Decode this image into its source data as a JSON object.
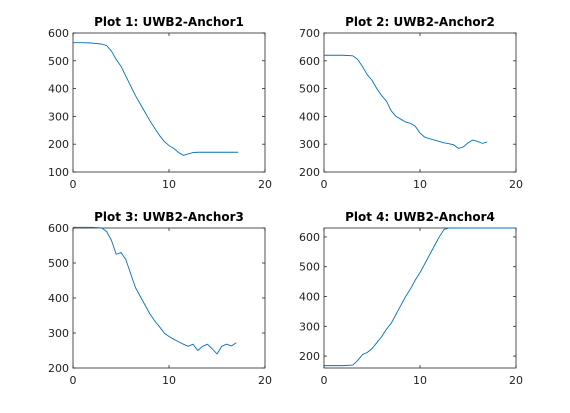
{
  "colors": {
    "line": "#0072BD"
  },
  "chart_data": [
    {
      "type": "line",
      "title": "Plot 1: UWB2-Anchor1",
      "xlim": [
        0,
        20
      ],
      "ylim": [
        100,
        600
      ],
      "xticks": [
        0,
        10,
        20
      ],
      "yticks": [
        100,
        200,
        300,
        400,
        500,
        600
      ],
      "series": [
        {
          "x": [
            0,
            1,
            2,
            3,
            3.5,
            4,
            4.5,
            5,
            5.5,
            6,
            6.5,
            7,
            7.5,
            8,
            8.5,
            9,
            9.5,
            10,
            10.5,
            11,
            11.5,
            12,
            12.5,
            13,
            14,
            15,
            16,
            17.2
          ],
          "y": [
            565,
            565,
            564,
            560,
            555,
            535,
            505,
            480,
            445,
            410,
            375,
            345,
            315,
            285,
            258,
            232,
            210,
            195,
            185,
            170,
            160,
            165,
            170,
            171,
            171,
            171,
            171,
            171
          ]
        }
      ]
    },
    {
      "type": "line",
      "title": "Plot 2: UWB2-Anchor2",
      "xlim": [
        0,
        20
      ],
      "ylim": [
        200,
        700
      ],
      "xticks": [
        0,
        10,
        20
      ],
      "yticks": [
        200,
        300,
        400,
        500,
        600,
        700
      ],
      "series": [
        {
          "x": [
            0,
            1,
            2,
            3,
            3.5,
            4,
            4.5,
            5,
            5.5,
            6,
            6.5,
            7,
            7.5,
            8,
            8.5,
            9,
            9.5,
            10,
            10.5,
            11,
            11.5,
            12,
            12.5,
            13,
            13.5,
            14,
            14.5,
            15,
            15.5,
            16,
            16.5,
            17
          ],
          "y": [
            620,
            620,
            620,
            618,
            605,
            580,
            550,
            530,
            500,
            475,
            455,
            420,
            400,
            390,
            380,
            375,
            365,
            340,
            325,
            320,
            315,
            310,
            305,
            302,
            298,
            285,
            290,
            305,
            315,
            310,
            303,
            308
          ]
        }
      ]
    },
    {
      "type": "line",
      "title": "Plot 3: UWB2-Anchor3",
      "xlim": [
        0,
        20
      ],
      "ylim": [
        200,
        600
      ],
      "xticks": [
        0,
        10,
        20
      ],
      "yticks": [
        200,
        300,
        400,
        500,
        600
      ],
      "series": [
        {
          "x": [
            0,
            1,
            2,
            3,
            3.5,
            4,
            4.5,
            5,
            5.5,
            6,
            6.5,
            7,
            7.5,
            8,
            8.5,
            9,
            9.5,
            10,
            10.5,
            11,
            11.5,
            12,
            12.5,
            13,
            13.5,
            14,
            14.5,
            15,
            15.5,
            16,
            16.5,
            17
          ],
          "y": [
            602,
            602,
            602,
            600,
            590,
            565,
            525,
            530,
            510,
            470,
            430,
            405,
            380,
            355,
            335,
            318,
            300,
            290,
            282,
            275,
            268,
            262,
            268,
            250,
            262,
            268,
            255,
            240,
            262,
            268,
            263,
            272
          ]
        }
      ]
    },
    {
      "type": "line",
      "title": "Plot 4: UWB2-Anchor4",
      "xlim": [
        0,
        20
      ],
      "ylim": [
        160,
        630
      ],
      "xticks": [
        0,
        10,
        20
      ],
      "yticks": [
        200,
        300,
        400,
        500,
        600
      ],
      "series": [
        {
          "x": [
            0,
            1,
            2,
            3,
            3.5,
            4,
            4.5,
            5,
            5.5,
            6,
            6.5,
            7,
            7.5,
            8,
            8.5,
            9,
            9.5,
            10,
            10.5,
            11,
            11.5,
            12,
            12.5,
            13,
            14,
            15,
            16,
            17,
            18,
            19.9
          ],
          "y": [
            168,
            168,
            168,
            170,
            185,
            205,
            212,
            225,
            245,
            265,
            290,
            310,
            340,
            370,
            400,
            425,
            455,
            480,
            510,
            540,
            570,
            600,
            625,
            630,
            630,
            630,
            630,
            630,
            630,
            630
          ]
        }
      ]
    }
  ]
}
